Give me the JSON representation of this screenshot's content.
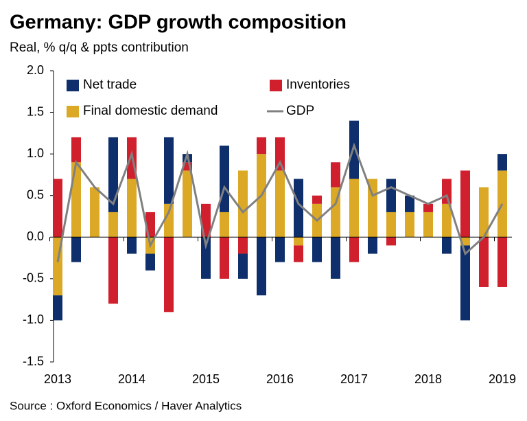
{
  "chart_data": {
    "type": "bar",
    "title": "Germany: GDP growth composition",
    "subtitle": "Real, % q/q & ppts contribution",
    "source": "Source : Oxford Economics / Haver Analytics",
    "categories": [
      "2013",
      null,
      null,
      null,
      "2014",
      null,
      null,
      null,
      "2015",
      null,
      null,
      null,
      "2016",
      null,
      null,
      null,
      "2017",
      null,
      null,
      null,
      "2018",
      null,
      null,
      null,
      "2019"
    ],
    "series": [
      {
        "name": "Net trade",
        "color": "#0e2f6b",
        "type": "bar",
        "values": [
          -0.3,
          -0.3,
          0,
          0.9,
          -0.2,
          -0.2,
          0.8,
          0.1,
          -0.5,
          0.8,
          -0.3,
          -0.7,
          -0.3,
          0.7,
          -0.3,
          -0.5,
          0.7,
          -0.2,
          0.4,
          0.2,
          0,
          -0.2,
          -0.9,
          0,
          0.2
        ]
      },
      {
        "name": "Inventories",
        "color": "#d0202e",
        "type": "bar",
        "values": [
          0.7,
          0.3,
          0,
          -0.8,
          0.5,
          0.3,
          -0.9,
          0.1,
          0.4,
          -0.5,
          -0.2,
          0.2,
          0.4,
          -0.2,
          0.1,
          0.3,
          -0.3,
          0,
          -0.1,
          0,
          0.1,
          0.3,
          0.8,
          -0.6,
          -0.6
        ]
      },
      {
        "name": "Final domestic demand",
        "color": "#dba925",
        "type": "bar",
        "values": [
          -0.7,
          0.9,
          0.6,
          0.3,
          0.7,
          -0.2,
          0.4,
          0.8,
          0,
          0.3,
          0.8,
          1.0,
          0.8,
          -0.1,
          0.4,
          0.6,
          0.7,
          0.7,
          0.3,
          0.3,
          0.3,
          0.4,
          -0.1,
          0.6,
          0.8
        ]
      },
      {
        "name": "GDP",
        "color": "#808080",
        "type": "line",
        "values": [
          -0.3,
          0.9,
          0.6,
          0.4,
          1.0,
          -0.1,
          0.3,
          1.0,
          -0.1,
          0.6,
          0.3,
          0.5,
          0.9,
          0.4,
          0.2,
          0.4,
          1.1,
          0.5,
          0.6,
          0.5,
          0.4,
          0.5,
          -0.2,
          0.0,
          0.4
        ]
      }
    ],
    "ylim": [
      -1.5,
      2.0
    ],
    "yticks": [
      {
        "value": -1.5,
        "label": "-1.5"
      },
      {
        "value": -1.0,
        "label": "-1.0"
      },
      {
        "value": -0.5,
        "label": "-0.5"
      },
      {
        "value": 0,
        "label": "0.0"
      },
      {
        "value": 0.5,
        "label": "0.5"
      },
      {
        "value": 1.0,
        "label": "1.0"
      },
      {
        "value": 1.5,
        "label": "1.5"
      },
      {
        "value": 2.0,
        "label": "2.0"
      }
    ],
    "grid": false
  }
}
